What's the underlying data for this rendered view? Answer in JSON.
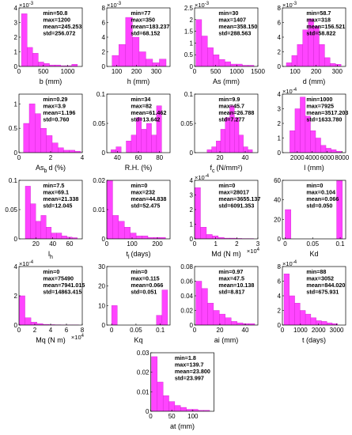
{
  "chart_data": [
    {
      "type": "histogram",
      "xlabel": "b (mm)",
      "y_multiplier": {
        "base": "×10",
        "power": "-3"
      },
      "annotations": [
        "min=50.8",
        "max=1200",
        "mean=245.253",
        "std=256.072"
      ],
      "bins": [
        50.8,
        165.7,
        280.6,
        395.5,
        510.5,
        625.4,
        740.3,
        855.2,
        970.1,
        1085.1,
        1200
      ],
      "values": [
        3.6,
        1.3,
        0.9,
        0.3,
        0.2,
        0.1,
        0.1,
        0.05,
        0.05,
        0.15
      ],
      "xlim": [
        0,
        1300
      ],
      "xticks": [
        0,
        500,
        1000
      ],
      "ylim": [
        0,
        4
      ],
      "yticks": [
        0,
        1,
        2,
        3,
        4
      ],
      "color": "#ff44ff"
    },
    {
      "type": "histogram",
      "xlabel": "h (mm)",
      "y_multiplier": {
        "base": "×10",
        "power": "-3"
      },
      "annotations": [
        "min=77",
        "max=350",
        "mean=183.237",
        "std=68.152"
      ],
      "bins": [
        77,
        111.1,
        145.3,
        179.4,
        213.5,
        247.6,
        281.8,
        315.9,
        350
      ],
      "values": [
        1.5,
        3,
        6.7,
        4,
        2,
        1,
        0.5,
        1
      ],
      "xlim": [
        50,
        370
      ],
      "xticks": [
        100,
        200,
        300
      ],
      "ylim": [
        0,
        8
      ],
      "yticks": [
        0,
        2,
        4,
        6,
        8
      ],
      "color": "#ff44ff"
    },
    {
      "type": "histogram",
      "xlabel": "As (mm)",
      "y_multiplier": {
        "base": "×10",
        "power": "-3"
      },
      "annotations": [
        "min=30",
        "max=1407",
        "mean=358.150",
        "std=288.563"
      ],
      "bins": [
        30,
        167.7,
        305.4,
        443.1,
        580.8,
        718.5,
        856.2,
        993.9,
        1131.6,
        1269.3,
        1407
      ],
      "values": [
        2.0,
        1.3,
        0.8,
        0.5,
        0.3,
        0.2,
        0.1,
        0.1,
        0.05,
        0.05
      ],
      "xlim": [
        0,
        1500
      ],
      "xticks": [
        0,
        500,
        1000,
        1500
      ],
      "ylim": [
        0,
        2.5
      ],
      "yticks": [
        0,
        0.5,
        1,
        1.5,
        2,
        2.5
      ],
      "color": "#ff44ff"
    },
    {
      "type": "histogram",
      "xlabel": "d (mm)",
      "y_multiplier": {
        "base": "×10",
        "power": "-3"
      },
      "annotations": [
        "min=58.7",
        "max=318",
        "mean=156.521",
        "std=58.822"
      ],
      "bins": [
        58.7,
        84.6,
        110.6,
        136.5,
        162.4,
        188.4,
        214.3,
        240.2,
        266.1,
        292.1,
        318
      ],
      "values": [
        0.5,
        1.5,
        3,
        5,
        6.5,
        5.5,
        3,
        1.2,
        0.4,
        0.3
      ],
      "xlim": [
        40,
        340
      ],
      "xticks": [
        100,
        200,
        300
      ],
      "ylim": [
        0,
        8
      ],
      "yticks": [
        0,
        2,
        4,
        6,
        8
      ],
      "color": "#ff44ff"
    },
    {
      "type": "histogram",
      "xlabel_parts": [
        {
          "text": "As",
          "sub": false
        },
        {
          "text": "b",
          "sub": true
        },
        {
          "text": "d (%)",
          "sub": false
        }
      ],
      "annotations": [
        "min=0.29",
        "max=3.9",
        "mean=1.196",
        "std=0.760"
      ],
      "bins": [
        0.29,
        0.65,
        1.01,
        1.37,
        1.73,
        2.1,
        2.46,
        2.82,
        3.18,
        3.54,
        3.9
      ],
      "values": [
        0.6,
        1.0,
        0.8,
        0.5,
        0.35,
        0.2,
        0.1,
        0.05,
        0.05,
        0.03
      ],
      "xlim": [
        0,
        4
      ],
      "xticks": [
        0,
        2,
        4
      ],
      "ylim": [
        0,
        1.2
      ],
      "yticks": [
        0,
        0.5,
        1
      ],
      "color": "#ff44ff"
    },
    {
      "type": "histogram",
      "xlabel": "R.H. (%)",
      "annotations": [
        "min=34",
        "max=82",
        "mean=61.462",
        "std=13.642"
      ],
      "bins": [
        34,
        38.8,
        43.6,
        48.4,
        53.2,
        58,
        62.8,
        67.6,
        72.4,
        77.2,
        82
      ],
      "values": [
        0.005,
        0.01,
        0,
        0.02,
        0.03,
        0.06,
        0.04,
        0.05,
        0.03,
        0.08
      ],
      "xlim": [
        30,
        90
      ],
      "xticks": [
        40,
        60,
        80
      ],
      "ylim": [
        0,
        0.1
      ],
      "yticks": [
        0,
        0.05,
        0.1
      ],
      "color": "#ff44ff"
    },
    {
      "type": "histogram",
      "xlabel_parts": [
        {
          "text": "f",
          "sub": false
        },
        {
          "text": "c",
          "sub": true
        },
        {
          "text": "(N/mm²)",
          "sub": false
        }
      ],
      "annotations": [
        "min=9.9",
        "max=45.7",
        "mean=26.788",
        "std=7.277"
      ],
      "bins": [
        9.9,
        13.5,
        17.1,
        20.6,
        24.2,
        27.8,
        31.4,
        35,
        38.5,
        42.1,
        45.7
      ],
      "values": [
        0.005,
        0.01,
        0.02,
        0.04,
        0.06,
        0.08,
        0.06,
        0.03,
        0.01,
        0.005
      ],
      "xlim": [
        0,
        50
      ],
      "xticks": [
        20,
        40
      ],
      "ylim": [
        0,
        0.1
      ],
      "yticks": [
        0,
        0.05,
        0.1
      ],
      "color": "#ff44ff"
    },
    {
      "type": "histogram",
      "xlabel": "l (mm)",
      "y_multiplier": {
        "base": "×10",
        "power": "-4"
      },
      "annotations": [
        "min=1000",
        "max=7925",
        "mean=3517.203",
        "std=1633.780"
      ],
      "bins": [
        1000,
        1692.5,
        2385,
        3077.5,
        3770,
        4462.5,
        5155,
        5847.5,
        6540,
        7232.5,
        7925
      ],
      "values": [
        1.5,
        3,
        3.8,
        2.5,
        1.5,
        1,
        0.5,
        0.3,
        0.2,
        0.1
      ],
      "xlim": [
        0,
        8500
      ],
      "xticks": [
        2000,
        4000,
        6000,
        8000
      ],
      "ylim": [
        0,
        4
      ],
      "yticks": [
        0,
        1,
        2,
        3,
        4
      ],
      "color": "#ff44ff"
    },
    {
      "type": "histogram",
      "xlabel_parts": [
        {
          "text": "l",
          "sub": false
        },
        {
          "text": "h",
          "sub": true
        }
      ],
      "annotations": [
        "min=7.5",
        "max=69.1",
        "mean=21.338",
        "std=12.045"
      ],
      "bins": [
        7.5,
        13.66,
        19.82,
        25.98,
        32.14,
        38.3,
        44.46,
        50.62,
        56.78,
        62.94,
        69.1
      ],
      "values": [
        0.09,
        0.06,
        0.03,
        0.04,
        0.02,
        0.01,
        0.01,
        0.005,
        0.003,
        0.002
      ],
      "xlim": [
        0,
        75
      ],
      "xticks": [
        20,
        40,
        60
      ],
      "ylim": [
        0,
        0.1
      ],
      "yticks": [
        0,
        0.05,
        0.1
      ],
      "color": "#ff44ff"
    },
    {
      "type": "histogram",
      "xlabel_parts": [
        {
          "text": "t",
          "sub": false
        },
        {
          "text": "l",
          "sub": true
        },
        {
          "text": "(days)",
          "sub": false
        }
      ],
      "annotations": [
        "min=0",
        "max=232",
        "mean=44.838",
        "std=52.475"
      ],
      "bins": [
        0,
        23.2,
        46.4,
        69.6,
        92.8,
        116,
        139.2,
        162.4,
        185.6,
        208.8,
        232
      ],
      "values": [
        0.02,
        0.008,
        0.006,
        0.004,
        0.002,
        0.001,
        0.001,
        0.0005,
        0.0005,
        0.0005
      ],
      "xlim": [
        0,
        250
      ],
      "xticks": [
        0,
        100,
        200
      ],
      "ylim": [
        0,
        0.02
      ],
      "yticks": [
        0,
        0.01,
        0.02
      ],
      "color": "#ff44ff"
    },
    {
      "type": "histogram",
      "xlabel": "Md (N m)",
      "y_multiplier": {
        "base": "×10",
        "power": "-4"
      },
      "x_multiplier": {
        "base": "×10",
        "power": "4"
      },
      "annotations": [
        "min=0",
        "max=28017",
        "mean=3655.137",
        "std=6091.353"
      ],
      "bins": [
        0,
        0.28,
        0.56,
        0.84,
        1.12,
        1.4,
        1.68,
        1.96,
        2.24,
        2.52,
        2.8
      ],
      "values": [
        3.5,
        0.8,
        0.3,
        0.2,
        0.1,
        0.05,
        0.05,
        0.03,
        0.02,
        0.02
      ],
      "xlim": [
        0,
        3
      ],
      "xticks": [
        0,
        1,
        2,
        3
      ],
      "ylim": [
        0,
        4
      ],
      "yticks": [
        0,
        1,
        2,
        3,
        4
      ],
      "color": "#ff44ff"
    },
    {
      "type": "histogram",
      "xlabel": "Kd",
      "annotations": [
        "min=0",
        "max=0.104",
        "mean=0.066",
        "std=0.050"
      ],
      "bins": [
        0,
        0.0104,
        0.0208,
        0.0312,
        0.0416,
        0.052,
        0.0624,
        0.0728,
        0.0832,
        0.0936,
        0.104
      ],
      "values": [
        30,
        0,
        0,
        0,
        0,
        0,
        0,
        0,
        0,
        60
      ],
      "xlim": [
        -0.005,
        0.11
      ],
      "xticks": [
        0,
        0.05,
        0.1
      ],
      "ylim": [
        0,
        60
      ],
      "yticks": [
        0,
        20,
        40,
        60
      ],
      "color": "#ff44ff"
    },
    {
      "type": "histogram",
      "xlabel": "Mq (N m)",
      "y_multiplier": {
        "base": "×10",
        "power": "-4"
      },
      "x_multiplier": {
        "base": "×10",
        "power": "4"
      },
      "annotations": [
        "min=0",
        "max=75490",
        "mean=7941.015",
        "std=14863.415"
      ],
      "bins": [
        0,
        0.755,
        1.51,
        2.265,
        3.02,
        3.775,
        4.53,
        5.285,
        6.04,
        6.795,
        7.549
      ],
      "values": [
        2,
        0.5,
        0.2,
        0.1,
        0.05,
        0.03,
        0.02,
        0.01,
        0.01,
        0.01
      ],
      "xlim": [
        0,
        8
      ],
      "xticks": [
        0,
        2,
        4,
        6,
        8
      ],
      "ylim": [
        0,
        4
      ],
      "yticks": [
        0,
        2,
        4
      ],
      "color": "#ff44ff"
    },
    {
      "type": "histogram",
      "xlabel": "Kq",
      "annotations": [
        "min=0",
        "max=0.115",
        "mean=0.066",
        "std=0.051"
      ],
      "bins": [
        0,
        0.0115,
        0.023,
        0.0345,
        0.046,
        0.0575,
        0.069,
        0.0805,
        0.092,
        0.1035,
        0.115
      ],
      "values": [
        10,
        0,
        0,
        0,
        0,
        0,
        0,
        0,
        5,
        18
      ],
      "xlim": [
        -0.01,
        0.12
      ],
      "xticks": [
        0,
        0.05,
        0.1
      ],
      "ylim": [
        0,
        30
      ],
      "yticks": [
        0,
        10,
        20,
        30
      ],
      "color": "#ff44ff"
    },
    {
      "type": "histogram",
      "xlabel": "ai (mm)",
      "annotations": [
        "min=0.97",
        "max=47.5",
        "mean=10.138",
        "std=8.817"
      ],
      "bins": [
        0.97,
        5.62,
        10.28,
        14.93,
        19.58,
        24.24,
        28.89,
        33.54,
        38.19,
        42.85,
        47.5
      ],
      "values": [
        0.06,
        0.05,
        0.03,
        0.02,
        0.015,
        0.01,
        0.005,
        0.003,
        0.002,
        0.002
      ],
      "xlim": [
        0,
        50
      ],
      "xticks": [
        0,
        20,
        40
      ],
      "ylim": [
        0,
        0.08
      ],
      "yticks": [
        0,
        0.02,
        0.04,
        0.06,
        0.08
      ],
      "color": "#ff44ff"
    },
    {
      "type": "histogram",
      "xlabel": "t (days)",
      "y_multiplier": {
        "base": "×10",
        "power": "-4"
      },
      "annotations": [
        "min=88",
        "max=3052",
        "mean=844.020",
        "std=675.931"
      ],
      "bins": [
        88,
        384.4,
        680.8,
        977.2,
        1273.6,
        1570,
        1866.4,
        2162.8,
        2459.2,
        2755.6,
        3052
      ],
      "values": [
        7,
        4,
        3,
        2,
        1.5,
        1,
        0.6,
        0.5,
        0.3,
        0.2
      ],
      "xlim": [
        0,
        3500
      ],
      "xticks": [
        0,
        1000,
        2000,
        3000
      ],
      "ylim": [
        0,
        8
      ],
      "yticks": [
        0,
        2,
        4,
        6,
        8
      ],
      "color": "#ff44ff"
    },
    {
      "type": "histogram",
      "xlabel": "at (mm)",
      "annotations": [
        "min=1.8",
        "max=139.7",
        "mean=23.800",
        "std=23.997"
      ],
      "bins": [
        1.8,
        15.59,
        29.38,
        43.17,
        56.96,
        70.75,
        84.54,
        98.33,
        112.12,
        125.91,
        139.7
      ],
      "values": [
        0.028,
        0.015,
        0.008,
        0.005,
        0.003,
        0.002,
        0.001,
        0.001,
        0.0005,
        0.0005
      ],
      "xlim": [
        0,
        150
      ],
      "xticks": [
        0,
        50,
        100
      ],
      "ylim": [
        0,
        0.03
      ],
      "yticks": [
        0,
        0.01,
        0.02,
        0.03
      ],
      "color": "#ff44ff"
    }
  ]
}
